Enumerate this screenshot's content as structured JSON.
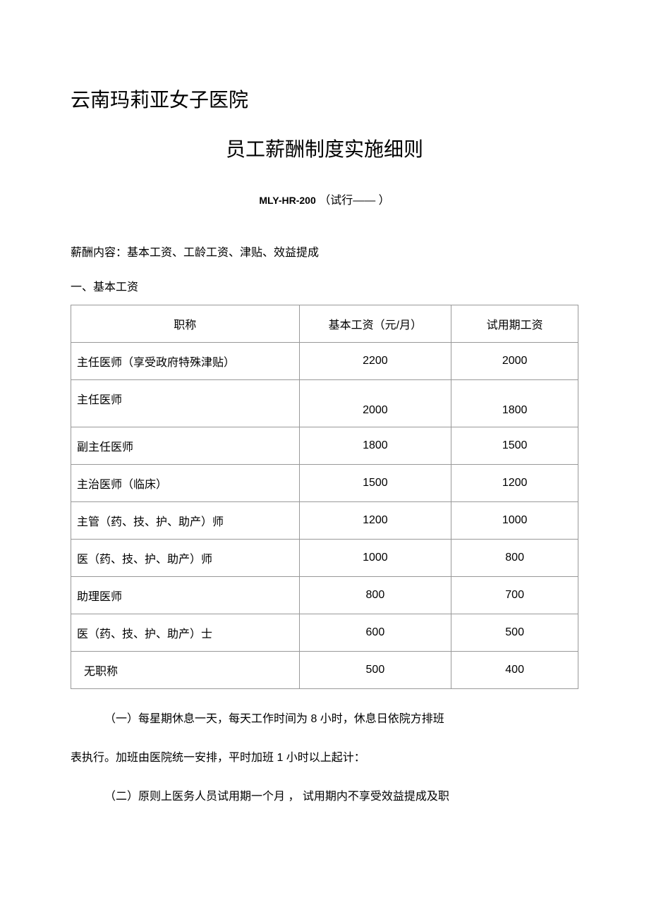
{
  "org_name": "云南玛莉亚女子医院",
  "doc_title": "员工薪酬制度实施细则",
  "doc_code_label": "MLY-HR-200",
  "doc_code_suffix": "（试行——    ）",
  "intro": "薪酬内容：基本工资、工龄工资、津贴、效益提成",
  "section1_heading": "一、基本工资",
  "table": {
    "columns": [
      "职称",
      "基本工资（元/月）",
      "试用期工资"
    ],
    "rows": [
      {
        "title": "主任医师（享受政府特殊津贴）",
        "base": "2200",
        "trial": "2000"
      },
      {
        "title": "主任医师",
        "base": "2000",
        "trial": "1800"
      },
      {
        "title": "副主任医师",
        "base": "1800",
        "trial": "1500"
      },
      {
        "title": "主治医师（临床）",
        "base": "1500",
        "trial": "1200"
      },
      {
        "title": "主管（药、技、护、助产）师",
        "base": "1200",
        "trial": "1000"
      },
      {
        "title": "医（药、技、护、助产）师",
        "base": "1000",
        "trial": "800"
      },
      {
        "title": "助理医师",
        "base": "800",
        "trial": "700"
      },
      {
        "title": "医（药、技、护、助产）士",
        "base": "600",
        "trial": "500"
      },
      {
        "title": "无职称",
        "base": "500",
        "trial": "400"
      }
    ]
  },
  "paragraphs": {
    "p1_a": "（一）每星期休息一天，每天工作时间为 ",
    "p1_num1": "8",
    "p1_b": " 小时，休息日依院方排班",
    "p1_c": "表执行。加班由医院统一安排，平时加班 ",
    "p1_num2": "1",
    "p1_d": " 小时以上起计：",
    "p2": "（二）原则上医务人员试用期一个月 ，  试用期内不享受效益提成及职"
  },
  "colors": {
    "text": "#000000",
    "background": "#ffffff",
    "border": "#999999"
  }
}
